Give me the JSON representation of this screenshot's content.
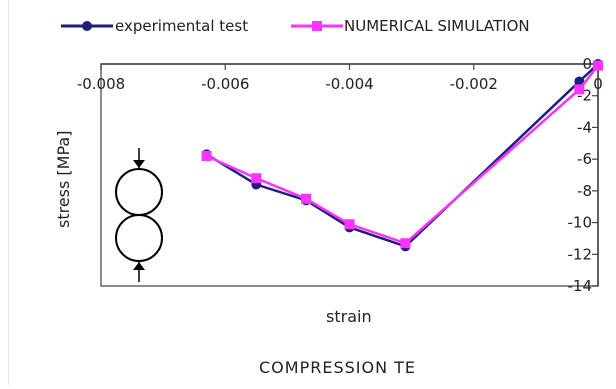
{
  "chart_data": {
    "type": "line",
    "title": "",
    "footer_text": "COMPRESSION    TE",
    "xlabel": "strain",
    "ylabel": "stress    [MPa]",
    "xlim": [
      -0.008,
      0
    ],
    "ylim": [
      -14,
      0
    ],
    "x_ticks": [
      -0.008,
      -0.006,
      -0.004,
      -0.002,
      0
    ],
    "x_tick_labels": [
      "-0.008",
      "-0.006",
      "-0.004",
      "-0.002",
      "0"
    ],
    "y_ticks": [
      0,
      -2,
      -4,
      -6,
      -8,
      -10,
      -12,
      -14
    ],
    "y_tick_labels": [
      "0",
      "-2",
      "-4",
      "-6",
      "-8",
      "-10",
      "-12",
      "-14"
    ],
    "grid": false,
    "legend_position": "top",
    "series": [
      {
        "name": "experimental test",
        "color": "#1f1f7a",
        "marker": "circle",
        "x": [
          -0.0063,
          -0.0055,
          -0.0047,
          -0.004,
          -0.0031,
          -0.0003,
          0.0
        ],
        "y": [
          -5.7,
          -7.6,
          -8.6,
          -10.3,
          -11.5,
          -1.1,
          0.0
        ]
      },
      {
        "name": "NUMERICAL SIMULATION",
        "color": "#ff33ff",
        "marker": "square",
        "x": [
          -0.0063,
          -0.0055,
          -0.0047,
          -0.004,
          -0.0031,
          -0.0003,
          0.0
        ],
        "y": [
          -5.8,
          -7.2,
          -8.5,
          -10.1,
          -11.3,
          -1.6,
          -0.1
        ]
      }
    ]
  },
  "diagram": {
    "icon": "compression-circles-icon"
  }
}
